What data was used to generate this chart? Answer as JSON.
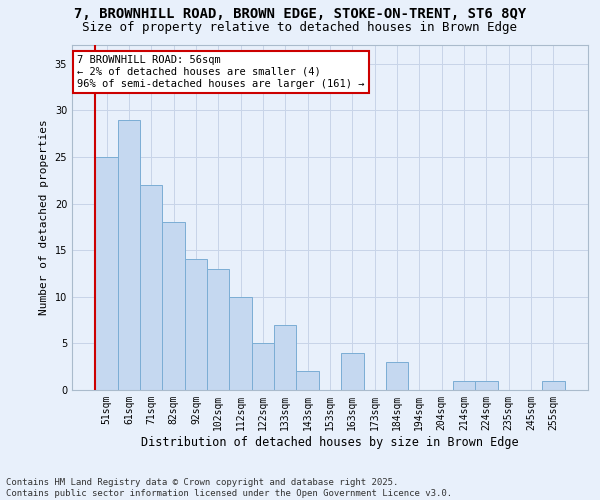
{
  "title": "7, BROWNHILL ROAD, BROWN EDGE, STOKE-ON-TRENT, ST6 8QY",
  "subtitle": "Size of property relative to detached houses in Brown Edge",
  "xlabel": "Distribution of detached houses by size in Brown Edge",
  "ylabel": "Number of detached properties",
  "categories": [
    "51sqm",
    "61sqm",
    "71sqm",
    "82sqm",
    "92sqm",
    "102sqm",
    "112sqm",
    "122sqm",
    "133sqm",
    "143sqm",
    "153sqm",
    "163sqm",
    "173sqm",
    "184sqm",
    "194sqm",
    "204sqm",
    "214sqm",
    "224sqm",
    "235sqm",
    "245sqm",
    "255sqm"
  ],
  "values": [
    25,
    29,
    22,
    18,
    14,
    13,
    10,
    5,
    7,
    2,
    0,
    4,
    0,
    3,
    0,
    0,
    1,
    1,
    0,
    0,
    1
  ],
  "bar_color": "#c5d8f0",
  "bar_edge_color": "#7badd4",
  "grid_color": "#c8d4e8",
  "background_color": "#e8f0fb",
  "annotation_line1": "7 BROWNHILL ROAD: 56sqm",
  "annotation_line2": "← 2% of detached houses are smaller (4)",
  "annotation_line3": "96% of semi-detached houses are larger (161) →",
  "annotation_box_color": "#ffffff",
  "annotation_box_edge_color": "#cc0000",
  "marker_line_color": "#cc0000",
  "ylim": [
    0,
    37
  ],
  "yticks": [
    0,
    5,
    10,
    15,
    20,
    25,
    30,
    35
  ],
  "footer_text": "Contains HM Land Registry data © Crown copyright and database right 2025.\nContains public sector information licensed under the Open Government Licence v3.0.",
  "title_fontsize": 10,
  "subtitle_fontsize": 9,
  "xlabel_fontsize": 8.5,
  "ylabel_fontsize": 8,
  "tick_fontsize": 7,
  "annotation_fontsize": 7.5,
  "footer_fontsize": 6.5
}
